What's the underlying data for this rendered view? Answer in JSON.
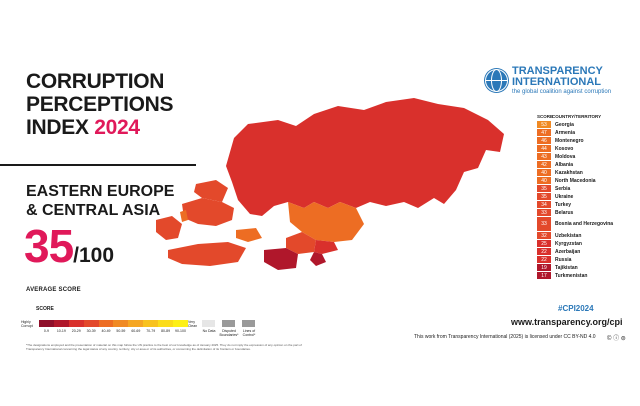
{
  "header": {
    "title_line1": "CORRUPTION",
    "title_line2": "PERCEPTIONS",
    "title_line3_prefix": "INDEX",
    "title_year": "2024"
  },
  "region": {
    "line1": "EASTERN EUROPE",
    "line2": "& CENTRAL ASIA"
  },
  "average": {
    "score": "35",
    "denominator": "/100",
    "label": "AVERAGE SCORE"
  },
  "brand": {
    "name_line1": "TRANSPARENCY",
    "name_line2": "INTERNATIONAL",
    "tagline": "the global coalition against corruption",
    "color": "#2b78b8"
  },
  "ranking": {
    "col_score": "SCORE",
    "col_country": "COUNTRY/TERRITORY",
    "rows": [
      {
        "score": "53",
        "country": "Georgia",
        "color": "#f08a24"
      },
      {
        "score": "47",
        "country": "Armenia",
        "color": "#ed6d23"
      },
      {
        "score": "46",
        "country": "Montenegro",
        "color": "#ed6d23"
      },
      {
        "score": "44",
        "country": "Kosovo",
        "color": "#ed6d23"
      },
      {
        "score": "43",
        "country": "Moldova",
        "color": "#ed6d23"
      },
      {
        "score": "42",
        "country": "Albania",
        "color": "#ed6d23"
      },
      {
        "score": "40",
        "country": "Kazakhstan",
        "color": "#ed6d23"
      },
      {
        "score": "40",
        "country": "North Macedonia",
        "color": "#ed6d23"
      },
      {
        "score": "35",
        "country": "Serbia",
        "color": "#e3492b"
      },
      {
        "score": "35",
        "country": "Ukraine",
        "color": "#e3492b"
      },
      {
        "score": "34",
        "country": "Turkey",
        "color": "#e3492b"
      },
      {
        "score": "33",
        "country": "Belarus",
        "color": "#e3492b"
      },
      {
        "score": "33",
        "country": "Bosnia and Herzegovina",
        "color": "#e3492b"
      },
      {
        "score": "32",
        "country": "Uzbekistan",
        "color": "#e3492b"
      },
      {
        "score": "25",
        "country": "Kyrgyzstan",
        "color": "#d9302c"
      },
      {
        "score": "22",
        "country": "Azerbaijan",
        "color": "#d9302c"
      },
      {
        "score": "22",
        "country": "Russia",
        "color": "#d9302c"
      },
      {
        "score": "19",
        "country": "Tajikistan",
        "color": "#b0172b"
      },
      {
        "score": "17",
        "country": "Turkmenistan",
        "color": "#b0172b"
      }
    ]
  },
  "legend": {
    "title": "SCORE",
    "high_label": "Highly Corrupt",
    "low_label": "Very Clean",
    "ranges": [
      "0-9",
      "10-19",
      "20-29",
      "30-39",
      "40-49",
      "50-59",
      "60-69",
      "70-79",
      "80-89",
      "90-100"
    ],
    "colors": [
      "#8f0f2a",
      "#b0172b",
      "#d9302c",
      "#e3492b",
      "#ed6d23",
      "#f08a24",
      "#f5a623",
      "#f8c21e",
      "#fbdc1a",
      "#fdf016"
    ],
    "no_data": "No Data",
    "disputed": "Disputed Boundaries*",
    "lines_control": "Lines of Control*"
  },
  "footer": {
    "hashtag": "#CPI2024",
    "website": "www.transparency.org/cpi",
    "license": "This work from Transparency International (2025) is licensed under CC BY-ND 4.0",
    "license_badges": "© ⓘ ⊜",
    "disclaimer": "*The designations employed and the presentation of material on this map follow the UN practice to the best of our knowledge as of January 2025. They do not imply the expression of any opinion on the part of Transparency International concerning the legal status of any country, territory, city or area or of its authorities, or concerning the delimitation of its frontiers or boundaries."
  },
  "map_colors": {
    "russia": "#d9302c",
    "kazakhstan": "#ed6d23",
    "ukraine": "#e3492b",
    "belarus": "#e3492b",
    "turkey": "#e3492b",
    "uzbekistan": "#e3492b",
    "turkmenistan": "#b0172b",
    "tajikistan": "#b0172b",
    "kyrgyzstan": "#d9302c",
    "caucasus": "#ed6d23",
    "balkans": "#e3492b"
  }
}
